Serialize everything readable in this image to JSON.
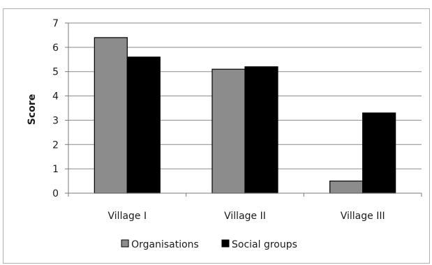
{
  "chart_data": {
    "type": "bar",
    "categories": [
      "Village I",
      "Village II",
      "Village III"
    ],
    "series": [
      {
        "name": "Organisations",
        "values": [
          6.4,
          5.1,
          0.5
        ],
        "color": "#8c8c8c"
      },
      {
        "name": "Social groups",
        "values": [
          5.6,
          5.2,
          3.3
        ],
        "color": "#000000"
      }
    ],
    "title": "",
    "xlabel": "",
    "ylabel": "Score",
    "ylim": [
      0,
      7
    ],
    "yticks": [
      "0",
      "1",
      "2",
      "3",
      "4",
      "5",
      "6",
      "7"
    ],
    "grid": true,
    "legend_position": "bottom"
  }
}
